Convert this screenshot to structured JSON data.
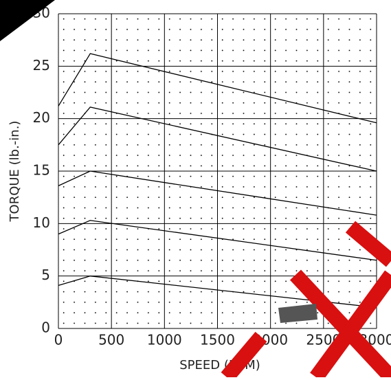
{
  "chart_data": {
    "type": "line",
    "x_label": "SPEED (RPM)",
    "y_label": "TORQUE (lb.-in.)",
    "x": [
      0,
      300,
      3000
    ],
    "series": [
      {
        "name": null,
        "color": "#000000",
        "values": [
          21.2,
          26.2,
          19.6
        ]
      },
      {
        "name": null,
        "color": "#000000",
        "values": [
          17.5,
          21.1,
          15.0
        ]
      },
      {
        "name": null,
        "color": "#000000",
        "values": [
          13.6,
          15.0,
          10.8
        ]
      },
      {
        "name": null,
        "color": "#000000",
        "values": [
          9.0,
          10.3,
          6.5
        ]
      },
      {
        "name": null,
        "color": "#000000",
        "values": [
          4.1,
          5.0,
          2.0
        ]
      }
    ],
    "xlim": [
      0,
      3000
    ],
    "xticks": [
      0,
      500,
      1000,
      1500,
      2000,
      2500,
      3000
    ],
    "ylim": [
      0,
      30
    ],
    "yticks": [
      0,
      5,
      10,
      15,
      20,
      25,
      30
    ],
    "grid": true
  }
}
